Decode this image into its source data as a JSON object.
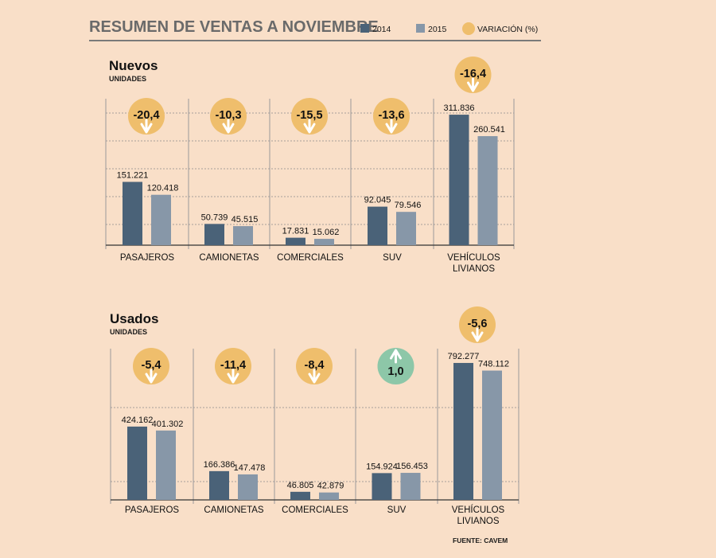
{
  "title": "RESUMEN DE VENTAS A NOVIEMBRE",
  "legend": {
    "series_2014": "2014",
    "series_2015": "2015",
    "variation": "VARIACIÓN (%)"
  },
  "colors": {
    "background": "#f9dfc8",
    "bar_2014": "#4a6278",
    "bar_2015": "#8797a8",
    "circle_negative": "#efbe6c",
    "circle_positive": "#8dc7a8",
    "title": "#6a6a6a"
  },
  "source": "FUENTE: CAVEM",
  "chart_data": [
    {
      "type": "bar",
      "title": "Nuevos",
      "ylabel": "UNIDADES",
      "ylim": [
        0,
        350000
      ],
      "categories": [
        "PASAJEROS",
        "CAMIONETAS",
        "COMERCIALES",
        "SUV",
        "VEHÍCULOS LIVIANOS"
      ],
      "series": [
        {
          "name": "2014",
          "values": [
            151221,
            50739,
            17831,
            92045,
            311836
          ],
          "labels": [
            "151.221",
            "50.739",
            "17.831",
            "92.045",
            "311.836"
          ]
        },
        {
          "name": "2015",
          "values": [
            120418,
            45515,
            15062,
            79546,
            260541
          ],
          "labels": [
            "120.418",
            "45.515",
            "15.062",
            "79.546",
            "260.541"
          ]
        }
      ],
      "variation": [
        -20.4,
        -10.3,
        -15.5,
        -13.6,
        -16.4
      ],
      "variation_labels": [
        "-20,4",
        "-10,3",
        "-15,5",
        "-13,6",
        "-16,4"
      ]
    },
    {
      "type": "bar",
      "title": "Usados",
      "ylabel": "UNIDADES",
      "ylim": [
        0,
        875000
      ],
      "categories": [
        "PASAJEROS",
        "CAMIONETAS",
        "COMERCIALES",
        "SUV",
        "VEHÍCULOS LIVIANOS"
      ],
      "series": [
        {
          "name": "2014",
          "values": [
            424162,
            166386,
            46805,
            154924,
            792277
          ],
          "labels": [
            "424.162",
            "166.386",
            "46.805",
            "154.924",
            "792.277"
          ]
        },
        {
          "name": "2015",
          "values": [
            401302,
            147478,
            42879,
            156453,
            748112
          ],
          "labels": [
            "401.302",
            "147.478",
            "42.879",
            "156.453",
            "748.112"
          ]
        }
      ],
      "variation": [
        -5.4,
        -11.4,
        -8.4,
        1.0,
        -5.6
      ],
      "variation_labels": [
        "-5,4",
        "-11,4",
        "-8,4",
        "1,0",
        "-5,6"
      ]
    }
  ]
}
